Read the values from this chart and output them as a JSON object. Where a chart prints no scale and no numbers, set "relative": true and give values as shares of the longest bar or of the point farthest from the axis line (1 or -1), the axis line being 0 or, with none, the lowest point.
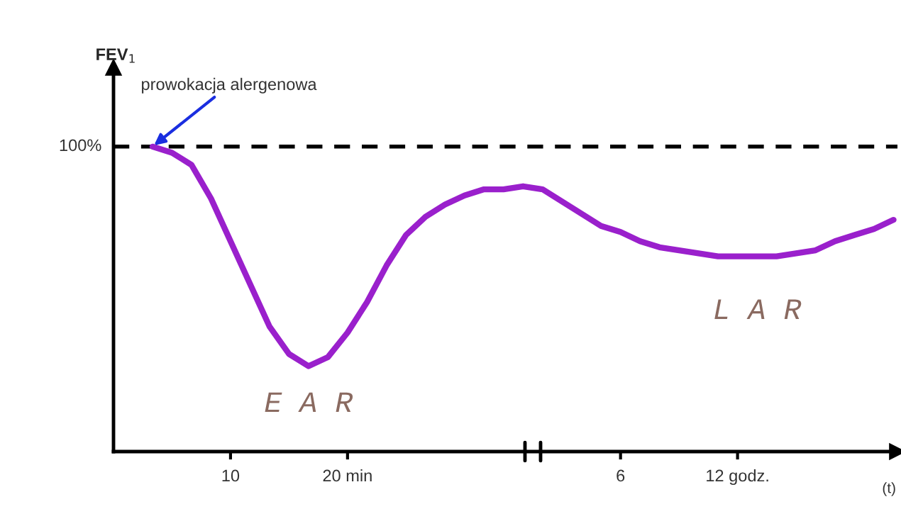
{
  "chart_data": {
    "type": "line",
    "relative": true,
    "xlabel": "(t)",
    "categories": [
      null,
      null,
      null,
      null,
      "10",
      null,
      null,
      null,
      null,
      null,
      "20 min",
      null,
      null,
      null,
      null,
      null,
      null,
      null,
      null,
      null,
      null,
      null,
      null,
      null,
      "6",
      null,
      null,
      null,
      null,
      null,
      "12 godz.",
      null,
      null,
      null,
      null,
      null,
      null,
      null,
      null
    ],
    "series": [
      {
        "color": "#9a20cc",
        "values": [
          1.0,
          0.98,
          0.94,
          0.83,
          0.69,
          0.55,
          0.41,
          0.32,
          0.28,
          0.31,
          0.39,
          0.49,
          0.61,
          0.71,
          0.77,
          0.81,
          0.84,
          0.86,
          0.86,
          0.87,
          0.86,
          0.82,
          0.78,
          0.74,
          0.72,
          0.69,
          0.67,
          0.66,
          0.65,
          0.64,
          0.64,
          0.64,
          0.64,
          0.65,
          0.66,
          0.69,
          0.71,
          0.73,
          0.76
        ]
      }
    ],
    "ref_lines": [
      {
        "axis": "y",
        "value": 1,
        "label": "100%",
        "color": "#000000",
        "line_style": "dashed"
      }
    ],
    "annotations": [
      "FEV$_{1}$",
      "prowokacja alergenowa",
      "E A R",
      "L A R"
    ],
    "grid": false,
    "marker": "none",
    "line_style": "solid"
  }
}
